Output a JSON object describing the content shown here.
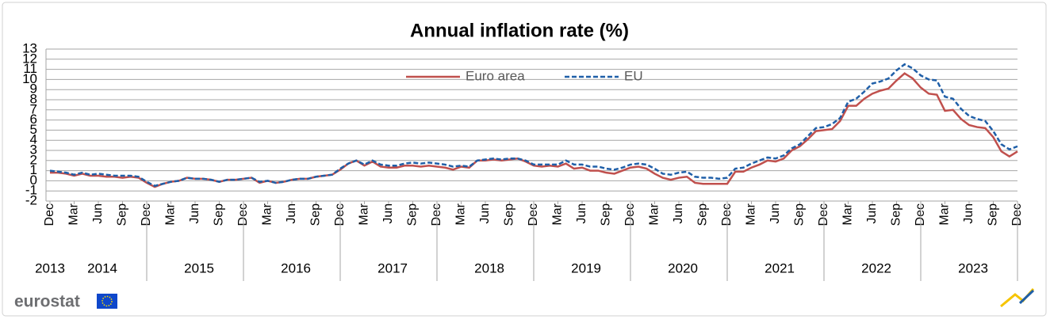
{
  "chart_data": {
    "type": "line",
    "title": "Annual inflation rate (%)",
    "categories": [
      "Dec",
      null,
      null,
      "Mar",
      null,
      null,
      "Jun",
      null,
      null,
      "Sep",
      null,
      null,
      "Dec",
      null,
      null,
      "Mar",
      null,
      null,
      "Jun",
      null,
      null,
      "Sep",
      null,
      null,
      "Dec",
      null,
      null,
      "Mar",
      null,
      null,
      "Jun",
      null,
      null,
      "Sep",
      null,
      null,
      "Dec",
      null,
      null,
      "Mar",
      null,
      null,
      "Jun",
      null,
      null,
      "Sep",
      null,
      null,
      "Dec",
      null,
      null,
      "Mar",
      null,
      null,
      "Jun",
      null,
      null,
      "Sep",
      null,
      null,
      "Dec",
      null,
      null,
      "Mar",
      null,
      null,
      "Jun",
      null,
      null,
      "Sep",
      null,
      null,
      "Dec",
      null,
      null,
      "Mar",
      null,
      null,
      "Jun",
      null,
      null,
      "Sep",
      null,
      null,
      "Dec",
      null,
      null,
      "Mar",
      null,
      null,
      "Jun",
      null,
      null,
      "Sep",
      null,
      null,
      "Dec",
      null,
      null,
      "Mar",
      null,
      null,
      "Jun",
      null,
      null,
      "Sep",
      null,
      null,
      "Dec",
      null,
      null,
      "Mar",
      null,
      null,
      "Jun",
      null,
      null,
      "Sep",
      null,
      null,
      "Dec"
    ],
    "year_labels": [
      "2013",
      "2014",
      "2015",
      "2016",
      "2017",
      "2018",
      "2019",
      "2020",
      "2021",
      "2022",
      "2023"
    ],
    "series": [
      {
        "name": "Euro area",
        "color": "#c0504d",
        "dash": false,
        "values": [
          0.8,
          0.8,
          0.7,
          0.5,
          0.7,
          0.5,
          0.5,
          0.4,
          0.4,
          0.3,
          0.4,
          0.3,
          -0.2,
          -0.6,
          -0.3,
          -0.1,
          0.0,
          0.3,
          0.2,
          0.2,
          0.1,
          -0.1,
          0.1,
          0.1,
          0.2,
          0.3,
          -0.2,
          0.0,
          -0.2,
          -0.1,
          0.1,
          0.2,
          0.2,
          0.4,
          0.5,
          0.6,
          1.1,
          1.7,
          2.0,
          1.5,
          1.9,
          1.4,
          1.3,
          1.3,
          1.5,
          1.5,
          1.4,
          1.5,
          1.4,
          1.3,
          1.1,
          1.4,
          1.3,
          2.0,
          2.0,
          2.1,
          2.0,
          2.1,
          2.2,
          1.9,
          1.5,
          1.4,
          1.5,
          1.4,
          1.7,
          1.2,
          1.3,
          1.0,
          1.0,
          0.8,
          0.7,
          1.0,
          1.3,
          1.4,
          1.2,
          0.7,
          0.3,
          0.1,
          0.3,
          0.4,
          -0.2,
          -0.3,
          -0.3,
          -0.3,
          -0.3,
          0.9,
          0.9,
          1.3,
          1.6,
          2.0,
          1.9,
          2.2,
          3.0,
          3.4,
          4.1,
          4.9,
          5.0,
          5.1,
          5.9,
          7.4,
          7.4,
          8.1,
          8.6,
          8.9,
          9.1,
          9.9,
          10.6,
          10.1,
          9.2,
          8.6,
          8.5,
          6.9,
          7.0,
          6.1,
          5.5,
          5.3,
          5.2,
          4.3,
          2.9,
          2.4,
          2.9
        ]
      },
      {
        "name": "EU",
        "color": "#1f5fa8",
        "dash": true,
        "values": [
          1.0,
          0.9,
          0.8,
          0.6,
          0.8,
          0.6,
          0.7,
          0.6,
          0.5,
          0.5,
          0.5,
          0.4,
          -0.1,
          -0.5,
          -0.3,
          -0.1,
          0.0,
          0.3,
          0.2,
          0.2,
          0.1,
          -0.1,
          0.1,
          0.1,
          0.2,
          0.3,
          -0.1,
          0.0,
          -0.2,
          -0.1,
          0.1,
          0.2,
          0.2,
          0.4,
          0.5,
          0.6,
          1.2,
          1.7,
          2.0,
          1.6,
          2.0,
          1.6,
          1.5,
          1.5,
          1.7,
          1.8,
          1.7,
          1.8,
          1.7,
          1.6,
          1.4,
          1.5,
          1.4,
          2.0,
          2.1,
          2.2,
          2.1,
          2.2,
          2.2,
          2.0,
          1.6,
          1.6,
          1.6,
          1.6,
          2.0,
          1.6,
          1.6,
          1.4,
          1.4,
          1.2,
          1.1,
          1.3,
          1.6,
          1.7,
          1.6,
          1.2,
          0.7,
          0.6,
          0.8,
          0.9,
          0.4,
          0.3,
          0.3,
          0.2,
          0.3,
          1.2,
          1.3,
          1.7,
          2.0,
          2.3,
          2.2,
          2.5,
          3.2,
          3.6,
          4.4,
          5.2,
          5.3,
          5.6,
          6.2,
          7.8,
          8.1,
          8.8,
          9.6,
          9.8,
          10.1,
          10.9,
          11.5,
          11.1,
          10.4,
          10.0,
          9.9,
          8.3,
          8.1,
          7.1,
          6.4,
          6.1,
          5.9,
          4.9,
          3.6,
          3.1,
          3.4
        ]
      }
    ],
    "ylim": [
      -2,
      13
    ],
    "yticks": [
      -2,
      -1,
      0,
      1,
      2,
      3,
      4,
      5,
      6,
      7,
      8,
      9,
      10,
      11,
      12,
      13
    ],
    "grid": true,
    "legend": "top"
  },
  "footer": {
    "logo": "eurostat"
  }
}
